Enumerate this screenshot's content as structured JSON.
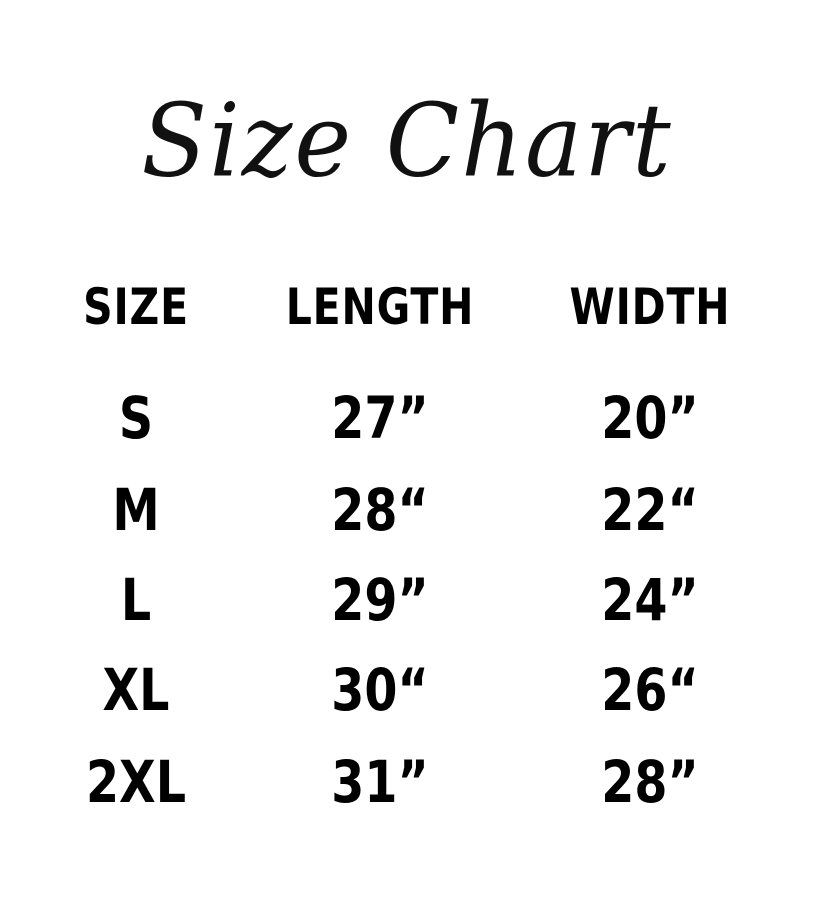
{
  "title": "Size Chart",
  "headers": [
    "SIZE",
    "LENGTH",
    "WIDTH"
  ],
  "rows": [
    [
      "S",
      "27”",
      "20”"
    ],
    [
      "M",
      "28“",
      "22“"
    ],
    [
      "L",
      "29”",
      "24”"
    ],
    [
      "XL",
      "30“",
      "26“"
    ],
    [
      "2XL",
      "31”",
      "28”"
    ]
  ]
}
